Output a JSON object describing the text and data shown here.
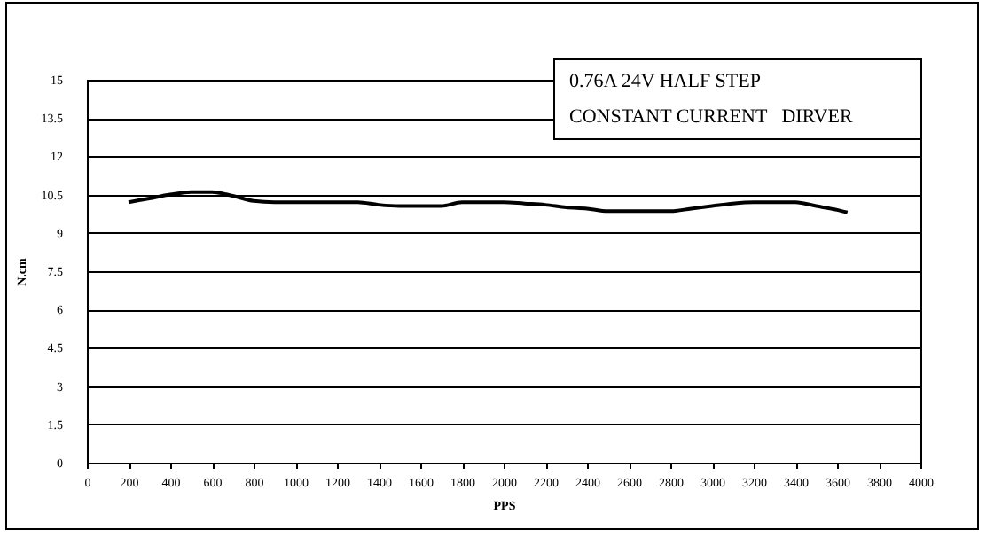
{
  "chart_data": {
    "type": "line",
    "xlabel": "PPS",
    "ylabel": "N.cm",
    "annotations": [
      "0.76A 24V HALF STEP",
      "CONSTANT CURRENT   DIRVER"
    ],
    "x": [
      200,
      300,
      400,
      500,
      600,
      700,
      800,
      900,
      1000,
      1100,
      1200,
      1300,
      1400,
      1500,
      1600,
      1700,
      1800,
      1900,
      2000,
      2100,
      2200,
      2300,
      2400,
      2500,
      2600,
      2700,
      2800,
      2900,
      3000,
      3100,
      3200,
      3300,
      3400,
      3500,
      3600,
      3650
    ],
    "series": [
      {
        "color": "#000000",
        "values": [
          10.2,
          10.35,
          10.5,
          10.6,
          10.6,
          10.45,
          10.25,
          10.2,
          10.2,
          10.2,
          10.2,
          10.2,
          10.1,
          10.05,
          10.05,
          10.05,
          10.2,
          10.2,
          10.2,
          10.15,
          10.1,
          10.0,
          9.95,
          9.85,
          9.85,
          9.85,
          9.85,
          9.95,
          10.05,
          10.15,
          10.2,
          10.2,
          10.2,
          10.05,
          9.9,
          9.8
        ]
      }
    ],
    "xlim": [
      0,
      4000
    ],
    "xticks": [
      0,
      200,
      400,
      600,
      800,
      1000,
      1200,
      1400,
      1600,
      1800,
      2000,
      2200,
      2400,
      2600,
      2800,
      3000,
      3200,
      3400,
      3600,
      3800,
      4000
    ],
    "ylim": [
      0,
      15
    ],
    "yticks": [
      0,
      1.5,
      3,
      4.5,
      6,
      7.5,
      9,
      10.5,
      12,
      13.5,
      15
    ],
    "grid": "y",
    "marker": "none",
    "line_style": "solid",
    "legend": false
  }
}
